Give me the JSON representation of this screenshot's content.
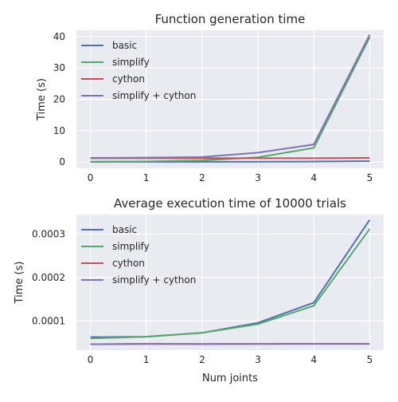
{
  "chart_data": [
    {
      "type": "line",
      "title": "Function generation time",
      "xlabel": "",
      "ylabel": "Time (s)",
      "x": [
        0,
        1,
        2,
        3,
        4,
        5
      ],
      "xlim": [
        -0.25,
        5.25
      ],
      "ylim": [
        -2,
        42
      ],
      "yticks": [
        0,
        10,
        20,
        30,
        40
      ],
      "ytick_labels": [
        "0",
        "10",
        "20",
        "30",
        "40"
      ],
      "xtick_labels": [
        "0",
        "1",
        "2",
        "3",
        "4",
        "5"
      ],
      "legend_position": "top-left",
      "series": [
        {
          "name": "basic",
          "color": "#4c72b0",
          "values": [
            0.05,
            0.06,
            0.08,
            0.1,
            0.15,
            0.3
          ]
        },
        {
          "name": "simplify",
          "color": "#55a868",
          "values": [
            0.1,
            0.2,
            0.5,
            1.5,
            4.5,
            39.8
          ]
        },
        {
          "name": "cython",
          "color": "#c44e52",
          "values": [
            1.2,
            1.2,
            1.2,
            1.2,
            1.2,
            1.3
          ]
        },
        {
          "name": "simplify + cython",
          "color": "#8172b2",
          "values": [
            1.3,
            1.4,
            1.6,
            3.0,
            5.6,
            40.6
          ]
        }
      ]
    },
    {
      "type": "line",
      "title": "Average execution time of 10000 trials",
      "xlabel": "Num joints",
      "ylabel": "Time (s)",
      "x": [
        0,
        1,
        2,
        3,
        4,
        5
      ],
      "xlim": [
        -0.25,
        5.25
      ],
      "ylim": [
        3.25e-05,
        0.000345
      ],
      "yticks": [
        0.0001,
        0.0002,
        0.0003
      ],
      "ytick_labels": [
        "0.0001",
        "0.0002",
        "0.0003"
      ],
      "xtick_labels": [
        "0",
        "1",
        "2",
        "3",
        "4",
        "5"
      ],
      "legend_position": "top-left",
      "series": [
        {
          "name": "basic",
          "color": "#4c72b0",
          "values": [
            6.25e-05,
            6.35e-05,
            7.25e-05,
            9.55e-05,
            0.000142,
            0.000333
          ]
        },
        {
          "name": "simplify",
          "color": "#55a868",
          "values": [
            5.95e-05,
            6.35e-05,
            7.25e-05,
            9.25e-05,
            0.000135,
            0.000312
          ]
        },
        {
          "name": "cython",
          "color": "#c44e52",
          "values": [
            4.62e-05,
            4.68e-05,
            4.66e-05,
            4.68e-05,
            4.7e-05,
            4.69e-05
          ]
        },
        {
          "name": "simplify + cython",
          "color": "#8172b2",
          "values": [
            4.6e-05,
            4.72e-05,
            4.68e-05,
            4.7e-05,
            4.72e-05,
            4.7e-05
          ]
        }
      ]
    }
  ]
}
